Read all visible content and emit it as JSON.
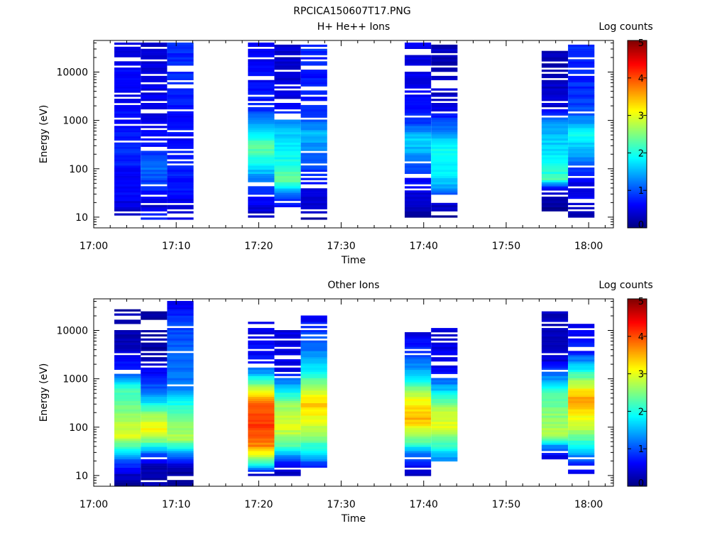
{
  "figure_title": "RPCICA150607T17.PNG",
  "chart_data": [
    {
      "type": "heatmap",
      "title": "H+ He++ Ions",
      "xlabel": "Time",
      "ylabel": "Energy (eV)",
      "x_ticks": [
        "17:00",
        "17:10",
        "17:20",
        "17:30",
        "17:40",
        "17:50",
        "18:00"
      ],
      "y_ticks": [
        "10",
        "100",
        "1000",
        "10000"
      ],
      "yscale": "log",
      "ylim_eV": [
        6,
        45000
      ],
      "xlim": [
        "17:00",
        "18:03"
      ],
      "colorbar": {
        "label": "Log counts",
        "ticks": [
          "0",
          "1",
          "2",
          "3",
          "4",
          "5"
        ],
        "range": [
          0,
          5
        ],
        "colormap": "jet"
      },
      "columns": [
        {
          "t_start": "17:02.5",
          "t_end": "17:05.7",
          "profile": [
            [
              9,
              0.4
            ],
            [
              12,
              0.3
            ],
            [
              28,
              0.6
            ],
            [
              60,
              0.6
            ],
            [
              200,
              0.8
            ],
            [
              800,
              0.7
            ],
            [
              3000,
              0.6
            ],
            [
              10000,
              0.7
            ],
            [
              30000,
              0.5
            ],
            [
              40000,
              0.5
            ]
          ]
        },
        {
          "t_start": "17:05.7",
          "t_end": "17:08.9",
          "profile": [
            [
              9,
              0.9
            ],
            [
              18,
              0.4
            ],
            [
              50,
              0.9
            ],
            [
              120,
              1.2
            ],
            [
              300,
              0.7
            ],
            [
              900,
              0.5
            ],
            [
              5000,
              0.5
            ],
            [
              20000,
              0.4
            ],
            [
              40000,
              0.4
            ]
          ]
        },
        {
          "t_start": "17:08.9",
          "t_end": "17:12.1",
          "profile": [
            [
              9,
              0.4
            ],
            [
              15,
              0.4
            ],
            [
              40,
              0.7
            ],
            [
              150,
              0.8
            ],
            [
              500,
              0.6
            ],
            [
              2000,
              0.7
            ],
            [
              8000,
              0.8
            ],
            [
              40000,
              0.8
            ]
          ]
        },
        {
          "t_start": "17:18.7",
          "t_end": "17:21.9",
          "profile": [
            [
              9,
              0.2
            ],
            [
              20,
              0.6
            ],
            [
              50,
              1.1
            ],
            [
              150,
              2.0
            ],
            [
              300,
              2.4
            ],
            [
              700,
              1.6
            ],
            [
              2000,
              0.7
            ],
            [
              10000,
              0.6
            ],
            [
              40000,
              0.6
            ]
          ]
        },
        {
          "t_start": "17:21.9",
          "t_end": "17:25.1",
          "profile": [
            [
              15,
              0.5
            ],
            [
              30,
              1.2
            ],
            [
              60,
              2.4
            ],
            [
              120,
              2.0
            ],
            [
              300,
              1.8
            ],
            [
              800,
              1.5
            ],
            [
              2000,
              0.5
            ],
            [
              10000,
              0.4
            ],
            [
              35000,
              0.4
            ]
          ]
        },
        {
          "t_start": "17:25.1",
          "t_end": "17:28.3",
          "profile": [
            [
              9,
              0.2
            ],
            [
              25,
              0.4
            ],
            [
              80,
              0.8
            ],
            [
              200,
              1.1
            ],
            [
              500,
              1.6
            ],
            [
              1200,
              0.9
            ],
            [
              5000,
              0.7
            ],
            [
              40000,
              0.8
            ]
          ]
        },
        {
          "t_start": "17:37.7",
          "t_end": "17:40.9",
          "profile": [
            [
              10,
              0.2
            ],
            [
              30,
              0.4
            ],
            [
              80,
              0.8
            ],
            [
              200,
              1.4
            ],
            [
              400,
              1.7
            ],
            [
              1000,
              0.8
            ],
            [
              5000,
              0.5
            ],
            [
              40000,
              0.5
            ]
          ]
        },
        {
          "t_start": "17:40.9",
          "t_end": "17:44.1",
          "profile": [
            [
              10,
              0.1
            ],
            [
              20,
              0.4
            ],
            [
              50,
              1.6
            ],
            [
              100,
              1.9
            ],
            [
              300,
              1.9
            ],
            [
              700,
              1.2
            ],
            [
              2000,
              0.4
            ],
            [
              10000,
              0.3
            ],
            [
              35000,
              0.3
            ]
          ]
        },
        {
          "t_start": "17:54.3",
          "t_end": "17:57.5",
          "profile": [
            [
              14,
              0.1
            ],
            [
              40,
              0.5
            ],
            [
              60,
              2.2
            ],
            [
              100,
              2.0
            ],
            [
              300,
              1.7
            ],
            [
              800,
              1.4
            ],
            [
              2000,
              0.4
            ],
            [
              10000,
              0.3
            ],
            [
              30000,
              0.3
            ]
          ]
        },
        {
          "t_start": "17:57.5",
          "t_end": "18:00.7",
          "profile": [
            [
              10,
              0.2
            ],
            [
              20,
              0.5
            ],
            [
              60,
              0.6
            ],
            [
              200,
              1.4
            ],
            [
              500,
              1.9
            ],
            [
              1500,
              1.0
            ],
            [
              5000,
              0.8
            ],
            [
              40000,
              0.8
            ]
          ]
        }
      ]
    },
    {
      "type": "heatmap",
      "title": "Other Ions",
      "xlabel": "Time",
      "ylabel": "Energy (eV)",
      "x_ticks": [
        "17:00",
        "17:10",
        "17:20",
        "17:30",
        "17:40",
        "17:50",
        "18:00"
      ],
      "y_ticks": [
        "10",
        "100",
        "1000",
        "10000"
      ],
      "yscale": "log",
      "ylim_eV": [
        6,
        45000
      ],
      "xlim": [
        "17:00",
        "18:03"
      ],
      "colorbar": {
        "label": "Log counts",
        "ticks": [
          "0",
          "1",
          "2",
          "3",
          "4",
          "5"
        ],
        "range": [
          0,
          5
        ],
        "colormap": "jet"
      },
      "columns": [
        {
          "t_start": "17:02.5",
          "t_end": "17:05.7",
          "profile": [
            [
              6,
              0.1
            ],
            [
              10,
              0.3
            ],
            [
              20,
              1.0
            ],
            [
              40,
              2.3
            ],
            [
              70,
              3.0
            ],
            [
              150,
              2.6
            ],
            [
              600,
              2.2
            ],
            [
              1500,
              0.9
            ],
            [
              5000,
              0.3
            ],
            [
              28000,
              0.2
            ]
          ]
        },
        {
          "t_start": "17:05.7",
          "t_end": "17:08.9",
          "profile": [
            [
              6,
              0.3
            ],
            [
              15,
              0.2
            ],
            [
              25,
              0.8
            ],
            [
              50,
              2.4
            ],
            [
              90,
              3.2
            ],
            [
              200,
              2.5
            ],
            [
              450,
              1.3
            ],
            [
              2500,
              0.2
            ],
            [
              25000,
              0.2
            ]
          ]
        },
        {
          "t_start": "17:08.9",
          "t_end": "17:12.1",
          "profile": [
            [
              6,
              0.1
            ],
            [
              15,
              0.2
            ],
            [
              30,
              1.5
            ],
            [
              60,
              2.8
            ],
            [
              200,
              2.3
            ],
            [
              700,
              1.2
            ],
            [
              3000,
              1.1
            ],
            [
              15000,
              0.9
            ],
            [
              38000,
              0.5
            ]
          ]
        },
        {
          "t_start": "17:18.7",
          "t_end": "17:21.9",
          "profile": [
            [
              10,
              0.2
            ],
            [
              18,
              2.2
            ],
            [
              40,
              3.7
            ],
            [
              100,
              4.1
            ],
            [
              300,
              4.0
            ],
            [
              800,
              2.4
            ],
            [
              2000,
              0.7
            ],
            [
              14000,
              0.5
            ]
          ]
        },
        {
          "t_start": "17:21.9",
          "t_end": "17:25.1",
          "profile": [
            [
              10,
              0.3
            ],
            [
              20,
              0.8
            ],
            [
              40,
              2.2
            ],
            [
              100,
              3.0
            ],
            [
              300,
              2.6
            ],
            [
              700,
              1.6
            ],
            [
              1500,
              0.5
            ],
            [
              12000,
              0.5
            ]
          ]
        },
        {
          "t_start": "17:25.1",
          "t_end": "17:28.3",
          "profile": [
            [
              15,
              0.7
            ],
            [
              30,
              1.8
            ],
            [
              80,
              2.7
            ],
            [
              300,
              3.4
            ],
            [
              800,
              2.5
            ],
            [
              2500,
              1.4
            ],
            [
              8000,
              1.0
            ],
            [
              20000,
              0.5
            ]
          ]
        },
        {
          "t_start": "17:37.7",
          "t_end": "17:40.9",
          "profile": [
            [
              10,
              0.2
            ],
            [
              25,
              1.0
            ],
            [
              50,
              2.3
            ],
            [
              150,
              3.5
            ],
            [
              400,
              3.0
            ],
            [
              1200,
              1.6
            ],
            [
              4000,
              0.8
            ],
            [
              9000,
              0.5
            ]
          ]
        },
        {
          "t_start": "17:40.9",
          "t_end": "17:44.1",
          "profile": [
            [
              20,
              1.2
            ],
            [
              40,
              2.1
            ],
            [
              100,
              3.0
            ],
            [
              250,
              2.8
            ],
            [
              600,
              1.6
            ],
            [
              1500,
              0.6
            ],
            [
              5000,
              0.5
            ],
            [
              11000,
              0.5
            ]
          ]
        },
        {
          "t_start": "17:54.3",
          "t_end": "17:57.5",
          "profile": [
            [
              22,
              0.3
            ],
            [
              40,
              1.3
            ],
            [
              70,
              2.8
            ],
            [
              150,
              2.6
            ],
            [
              500,
              2.2
            ],
            [
              1200,
              1.2
            ],
            [
              2500,
              0.4
            ],
            [
              23000,
              0.3
            ]
          ]
        },
        {
          "t_start": "17:57.5",
          "t_end": "18:00.7",
          "profile": [
            [
              10,
              0.3
            ],
            [
              20,
              1.0
            ],
            [
              40,
              1.9
            ],
            [
              100,
              2.8
            ],
            [
              400,
              3.6
            ],
            [
              1000,
              2.5
            ],
            [
              3500,
              0.8
            ],
            [
              15000,
              0.5
            ]
          ]
        }
      ]
    }
  ]
}
